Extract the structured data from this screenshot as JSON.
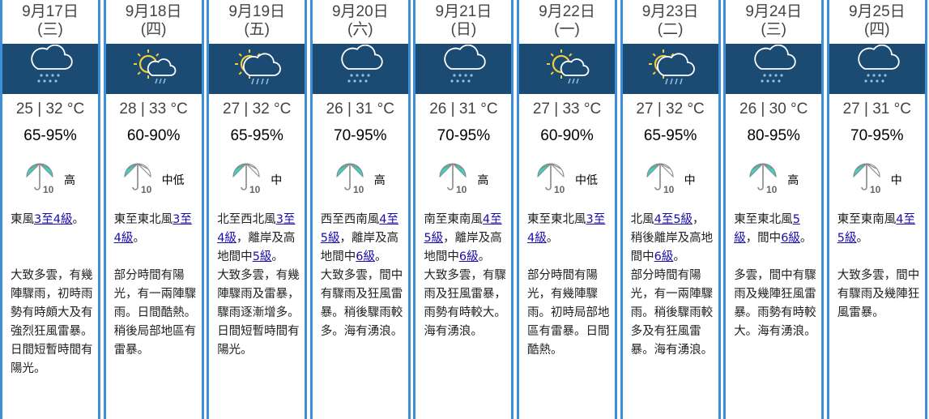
{
  "colors": {
    "border": "#3d8fd8",
    "band": "#1b4a73",
    "umbrella": "#3cd3c3",
    "link": "#1a0dab"
  },
  "days": [
    {
      "date": "9月17日",
      "weekday": "(三)",
      "icon": "cloud-rain-icon",
      "temp": "25 | 32 °C",
      "rh": "65-95%",
      "psr_level": 5,
      "psr": "高",
      "wind_pre": "東風",
      "wind_link": "3至4級",
      "wind_mid": "。",
      "wind_link2": "",
      "wind_post": "",
      "desc": "大致多雲，有幾陣驟雨，初時雨勢有時頗大及有強烈狂風雷暴。日間短暫時間有陽光。"
    },
    {
      "date": "9月18日",
      "weekday": "(四)",
      "icon": "sun-cloud-rain-icon",
      "temp": "28 | 33 °C",
      "rh": "60-90%",
      "psr_level": 2,
      "psr": "中低",
      "wind_pre": "東至東北風",
      "wind_link": "3至4級",
      "wind_mid": "。",
      "wind_link2": "",
      "wind_post": "",
      "desc": "部分時間有陽光，有一兩陣驟雨。日間酷熱。稍後局部地區有雷暴。"
    },
    {
      "date": "9月19日",
      "weekday": "(五)",
      "icon": "sun-behind-rain-cloud-icon",
      "temp": "27 | 32 °C",
      "rh": "65-95%",
      "psr_level": 3,
      "psr": "中",
      "wind_pre": "北至西北風",
      "wind_link": "3至4級",
      "wind_mid": "，離岸及高地間中",
      "wind_link2": "5級",
      "wind_post": "。",
      "desc": "大致多雲，有幾陣驟雨及雷暴，驟雨逐漸增多。日間短暫時間有陽光。"
    },
    {
      "date": "9月20日",
      "weekday": "(六)",
      "icon": "cloud-rain-icon",
      "temp": "26 | 31 °C",
      "rh": "70-95%",
      "psr_level": 5,
      "psr": "高",
      "wind_pre": "西至西南風",
      "wind_link": "4至5級",
      "wind_mid": "，離岸及高地間中",
      "wind_link2": "6級",
      "wind_post": "。",
      "desc": "大致多雲，間中有驟雨及狂風雷暴。稍後驟雨較多。海有湧浪。"
    },
    {
      "date": "9月21日",
      "weekday": "(日)",
      "icon": "cloud-rain-icon",
      "temp": "26 | 31 °C",
      "rh": "70-95%",
      "psr_level": 5,
      "psr": "高",
      "wind_pre": "南至東南風",
      "wind_link": "4至5級",
      "wind_mid": "，離岸及高地間中",
      "wind_link2": "6級",
      "wind_post": "。",
      "desc": "大致多雲，有驟雨及狂風雷暴，雨勢有時較大。海有湧浪。"
    },
    {
      "date": "9月22日",
      "weekday": "(一)",
      "icon": "sun-cloud-rain-icon",
      "temp": "27 | 33 °C",
      "rh": "60-90%",
      "psr_level": 2,
      "psr": "中低",
      "wind_pre": "東至東北風",
      "wind_link": "3至4級",
      "wind_mid": "。",
      "wind_link2": "",
      "wind_post": "",
      "desc": "部分時間有陽光，有幾陣驟雨。初時局部地區有雷暴。日間酷熱。"
    },
    {
      "date": "9月23日",
      "weekday": "(二)",
      "icon": "sun-behind-rain-cloud-icon",
      "temp": "27 | 32 °C",
      "rh": "65-95%",
      "psr_level": 3,
      "psr": "中",
      "wind_pre": "北風",
      "wind_link": "4至5級",
      "wind_mid": "，稍後離岸及高地間中",
      "wind_link2": "6級",
      "wind_post": "。",
      "desc": "部分時間有陽光，有一兩陣驟雨。稍後驟雨較多及有狂風雷暴。海有湧浪。"
    },
    {
      "date": "9月24日",
      "weekday": "(三)",
      "icon": "cloud-rain-icon",
      "temp": "26 | 30 °C",
      "rh": "80-95%",
      "psr_level": 5,
      "psr": "高",
      "wind_pre": "東至東北風",
      "wind_link": "5級",
      "wind_mid": "，間中",
      "wind_link2": "6級",
      "wind_post": "。",
      "desc": "多雲，間中有驟雨及幾陣狂風雷暴。雨勢有時較大。海有湧浪。"
    },
    {
      "date": "9月25日",
      "weekday": "(四)",
      "icon": "cloud-rain-icon",
      "temp": "27 | 31 °C",
      "rh": "70-95%",
      "psr_level": 3,
      "psr": "中",
      "wind_pre": "東至東南風",
      "wind_link": "4至5級",
      "wind_mid": "。",
      "wind_link2": "",
      "wind_post": "",
      "desc": "大致多雲，間中有驟雨及幾陣狂風雷暴。"
    }
  ]
}
